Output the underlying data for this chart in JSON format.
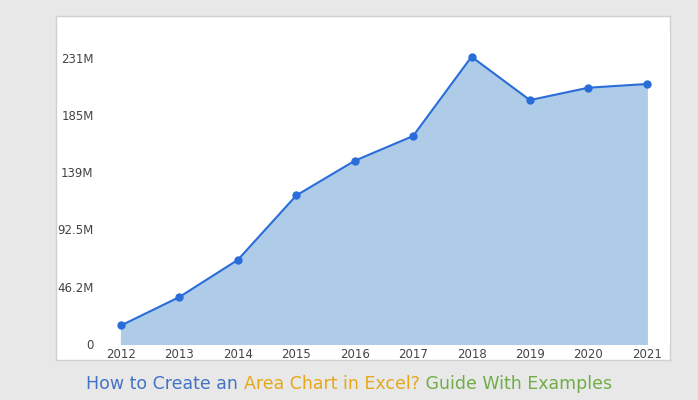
{
  "years": [
    2012,
    2013,
    2014,
    2015,
    2016,
    2017,
    2018,
    2019,
    2020,
    2021
  ],
  "values": [
    15000000,
    38000000,
    68000000,
    120000000,
    148000000,
    168000000,
    232000000,
    197000000,
    207000000,
    210000000
  ],
  "area_color": "#aecce8",
  "area_alpha": 1.0,
  "line_color": "#2a6dd9",
  "marker_color": "#2a6dd9",
  "marker_size": 5,
  "line_width": 1.5,
  "ytick_labels": [
    "0",
    "46.2M",
    "92.5M",
    "139M",
    "185M",
    "231M"
  ],
  "ytick_values": [
    0,
    46200000,
    92500000,
    139000000,
    185000000,
    231000000
  ],
  "xlim": [
    2011.6,
    2021.4
  ],
  "ylim": [
    0,
    252000000
  ],
  "outer_bg": "#e8e8e8",
  "chart_bg": "#ffffff",
  "box_bg": "#ffffff",
  "border_color": "#d0d0d0",
  "title_parts": [
    {
      "text": "How to Create an ",
      "color": "#4472c4"
    },
    {
      "text": "Area Chart in Excel?",
      "color": "#e6a817"
    },
    {
      "text": " Guide With Examples",
      "color": "#70ad47"
    }
  ],
  "title_fontsize": 12.5
}
